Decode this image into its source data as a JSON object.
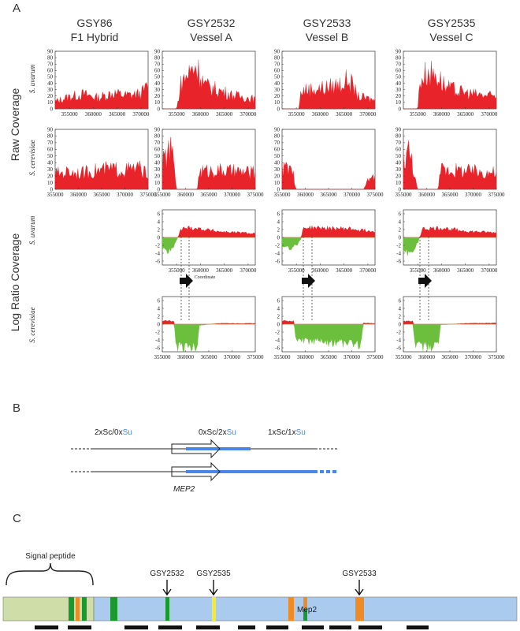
{
  "panels": {
    "a": "A",
    "b": "B",
    "c": "C"
  },
  "columns": [
    {
      "line1": "GSY86",
      "line2": "F1 Hybrid"
    },
    {
      "line1": "GSY2532",
      "line2": "Vessel A"
    },
    {
      "line1": "GSY2533",
      "line2": "Vessel B"
    },
    {
      "line1": "GSY2535",
      "line2": "Vessel C"
    }
  ],
  "rows": {
    "raw": "Raw Coverage",
    "log": "Log Ratio Coverage",
    "s_uvarum": "S. uvarum",
    "s_cerevisiae": "S. cerevisiae"
  },
  "coordinate_label": "Coordinate",
  "chart_data": [
    {
      "type": "area",
      "panel": "raw-uvarum-GSY86",
      "xlim": [
        352000,
        371500
      ],
      "ylim": [
        0,
        90
      ],
      "xticks": [
        "355000",
        "360000",
        "365000",
        "370000"
      ],
      "yticks": [
        "0",
        "10",
        "20",
        "30",
        "40",
        "50",
        "60",
        "70",
        "80",
        "90"
      ],
      "x": [
        352000,
        355000,
        358000,
        361000,
        364000,
        367000,
        370000,
        371500
      ],
      "y": [
        12,
        20,
        24,
        18,
        26,
        22,
        25,
        38
      ]
    },
    {
      "type": "area",
      "panel": "raw-uvarum-GSY2532",
      "xlim": [
        352000,
        371500
      ],
      "ylim": [
        0,
        90
      ],
      "xticks": [
        "355000",
        "360000",
        "365000",
        "370000"
      ],
      "yticks": [
        "0",
        "10",
        "20",
        "30",
        "40",
        "50",
        "60",
        "70",
        "80",
        "90"
      ],
      "x": [
        352000,
        355000,
        356000,
        358000,
        359000,
        361000,
        364000,
        367000,
        370000,
        371500
      ],
      "y": [
        0,
        0,
        45,
        62,
        72,
        38,
        30,
        22,
        18,
        16
      ]
    },
    {
      "type": "area",
      "panel": "raw-uvarum-GSY2533",
      "xlim": [
        352000,
        371500
      ],
      "ylim": [
        0,
        90
      ],
      "xticks": [
        "355000",
        "360000",
        "365000",
        "370000"
      ],
      "yticks": [
        "0",
        "10",
        "20",
        "30",
        "40",
        "50",
        "60",
        "70",
        "80",
        "90"
      ],
      "x": [
        352000,
        355500,
        356000,
        358000,
        361000,
        364000,
        366000,
        368000,
        371500
      ],
      "y": [
        0,
        0,
        30,
        32,
        34,
        40,
        48,
        20,
        14
      ]
    },
    {
      "type": "area",
      "panel": "raw-uvarum-GSY2535",
      "xlim": [
        352000,
        371500
      ],
      "ylim": [
        0,
        90
      ],
      "xticks": [
        "355000",
        "360000",
        "365000",
        "370000"
      ],
      "yticks": [
        "0",
        "10",
        "20",
        "30",
        "40",
        "50",
        "60",
        "70",
        "80",
        "90"
      ],
      "x": [
        352000,
        355000,
        355500,
        357000,
        359000,
        361000,
        364000,
        367000,
        371500
      ],
      "y": [
        0,
        0,
        48,
        60,
        56,
        35,
        28,
        24,
        20
      ]
    },
    {
      "type": "area",
      "panel": "raw-cerevisiae-GSY86",
      "xlim": [
        355000,
        375000
      ],
      "ylim": [
        0,
        90
      ],
      "xticks": [
        "355000",
        "360000",
        "365000",
        "370000",
        "375000"
      ],
      "yticks": [
        "0",
        "10",
        "20",
        "30",
        "40",
        "50",
        "60",
        "70",
        "80",
        "90"
      ],
      "x": [
        355000,
        358000,
        361000,
        364000,
        367000,
        370000,
        373000,
        375000
      ],
      "y": [
        25,
        28,
        26,
        30,
        32,
        30,
        34,
        22
      ]
    },
    {
      "type": "area",
      "panel": "raw-cerevisiae-GSY2532",
      "xlim": [
        355000,
        375000
      ],
      "ylim": [
        0,
        90
      ],
      "xticks": [
        "355000",
        "360000",
        "365000",
        "370000",
        "375000"
      ],
      "yticks": [
        "0",
        "10",
        "20",
        "30",
        "40",
        "50",
        "60",
        "70",
        "80",
        "90"
      ],
      "x": [
        355000,
        356500,
        357500,
        358000,
        362500,
        363000,
        366000,
        370000,
        375000
      ],
      "y": [
        40,
        62,
        50,
        0,
        0,
        28,
        30,
        28,
        26
      ]
    },
    {
      "type": "area",
      "panel": "raw-cerevisiae-GSY2533",
      "xlim": [
        355000,
        375000
      ],
      "ylim": [
        0,
        90
      ],
      "xticks": [
        "355000",
        "360000",
        "365000",
        "370000",
        "375000"
      ],
      "yticks": [
        "0",
        "10",
        "20",
        "30",
        "40",
        "50",
        "60",
        "70",
        "80",
        "90"
      ],
      "x": [
        355000,
        356000,
        357500,
        358000,
        372500,
        373000,
        374000,
        375000
      ],
      "y": [
        30,
        34,
        22,
        0,
        0,
        8,
        18,
        20
      ]
    },
    {
      "type": "area",
      "panel": "raw-cerevisiae-GSY2535",
      "xlim": [
        355000,
        375000
      ],
      "ylim": [
        0,
        90
      ],
      "xticks": [
        "355000",
        "360000",
        "365000",
        "370000",
        "375000"
      ],
      "yticks": [
        "0",
        "10",
        "20",
        "30",
        "40",
        "50",
        "60",
        "70",
        "80",
        "90"
      ],
      "x": [
        355000,
        356000,
        357000,
        358000,
        362500,
        363000,
        366000,
        370000,
        375000
      ],
      "y": [
        45,
        62,
        40,
        0,
        0,
        32,
        30,
        28,
        26
      ]
    },
    {
      "type": "area",
      "panel": "log-uvarum-GSY2532",
      "xlim": [
        352000,
        371500
      ],
      "ylim": [
        -7,
        7
      ],
      "xticks": [
        "355000",
        "360000",
        "365000",
        "370000"
      ],
      "yticks": [
        "6",
        "4",
        "2",
        "0",
        "-2",
        "-4",
        "-6"
      ],
      "x": [
        352000,
        353500,
        354500,
        356000,
        358000,
        364000,
        371500
      ],
      "y": [
        -3,
        -3.5,
        -2,
        2.2,
        2.5,
        1.5,
        1.0
      ]
    },
    {
      "type": "area",
      "panel": "log-uvarum-GSY2533",
      "xlim": [
        352000,
        371500
      ],
      "ylim": [
        -7,
        7
      ],
      "xticks": [
        "355000",
        "360000",
        "365000",
        "370000"
      ],
      "yticks": [
        "6",
        "4",
        "2",
        "0",
        "-2",
        "-4",
        "-6"
      ],
      "x": [
        352000,
        354000,
        355800,
        356500,
        360000,
        366000,
        371500
      ],
      "y": [
        -2.5,
        -3,
        -1,
        2.5,
        2.4,
        2.2,
        1.5
      ]
    },
    {
      "type": "area",
      "panel": "log-uvarum-GSY2535",
      "xlim": [
        352000,
        371500
      ],
      "ylim": [
        -7,
        7
      ],
      "xticks": [
        "355000",
        "360000",
        "365000",
        "370000"
      ],
      "yticks": [
        "6",
        "4",
        "2",
        "0",
        "-2",
        "-4",
        "-6"
      ],
      "x": [
        352000,
        353500,
        355000,
        356000,
        360000,
        366000,
        371500
      ],
      "y": [
        -3.5,
        -4,
        -1.5,
        2.2,
        2.4,
        1.5,
        1.2
      ]
    },
    {
      "type": "area",
      "panel": "log-cerevisiae-GSY2532",
      "xlim": [
        355000,
        375000
      ],
      "ylim": [
        -7,
        7
      ],
      "xticks": [
        "355000",
        "360000",
        "365000",
        "370000",
        "375000"
      ],
      "yticks": [
        "6",
        "4",
        "2",
        "0",
        "-2",
        "-4",
        "-6"
      ],
      "x": [
        355000,
        357500,
        358000,
        362500,
        363000,
        367000,
        371000,
        375000
      ],
      "y": [
        0.8,
        0.8,
        -5.5,
        -5.8,
        -0.3,
        0.2,
        0.2,
        0.2
      ]
    },
    {
      "type": "area",
      "panel": "log-cerevisiae-GSY2533",
      "xlim": [
        355000,
        375000
      ],
      "ylim": [
        -7,
        7
      ],
      "xticks": [
        "355000",
        "360000",
        "365000",
        "370000",
        "375000"
      ],
      "yticks": [
        "6",
        "4",
        "2",
        "0",
        "-2",
        "-4",
        "-6"
      ],
      "x": [
        355000,
        357500,
        358000,
        365000,
        372000,
        372500,
        375000
      ],
      "y": [
        0.8,
        0.8,
        -4.3,
        -4.6,
        -5.2,
        0.3,
        0.2
      ]
    },
    {
      "type": "area",
      "panel": "log-cerevisiae-GSY2535",
      "xlim": [
        355000,
        375000
      ],
      "ylim": [
        -7,
        7
      ],
      "xticks": [
        "355000",
        "360000",
        "365000",
        "370000",
        "375000"
      ],
      "yticks": [
        "6",
        "4",
        "2",
        "0",
        "-2",
        "-4",
        "-6"
      ],
      "x": [
        355000,
        357000,
        357500,
        362500,
        363000,
        368000,
        375000
      ],
      "y": [
        0.8,
        0.8,
        -5.5,
        -5.6,
        -0.2,
        0.2,
        0.3
      ]
    }
  ],
  "colors": {
    "raw": "#e8232a",
    "pos": "#e8232a",
    "neg": "#6cbf3c",
    "blue": "#4a86e8",
    "su": "#4a86e8"
  },
  "panel_b": {
    "label_left": "2xSc/0x",
    "label_left_su": "Su",
    "label_mid": "0xSc/2x",
    "label_mid_su": "Su",
    "label_right": "1xSc/1x",
    "label_right_su": "Su",
    "gene": "MEP2"
  },
  "panel_c": {
    "signal_peptide": "Signal peptide",
    "protein": "Mep2",
    "mutations": [
      "GSY2532",
      "GSY2535",
      "GSY2533"
    ]
  }
}
